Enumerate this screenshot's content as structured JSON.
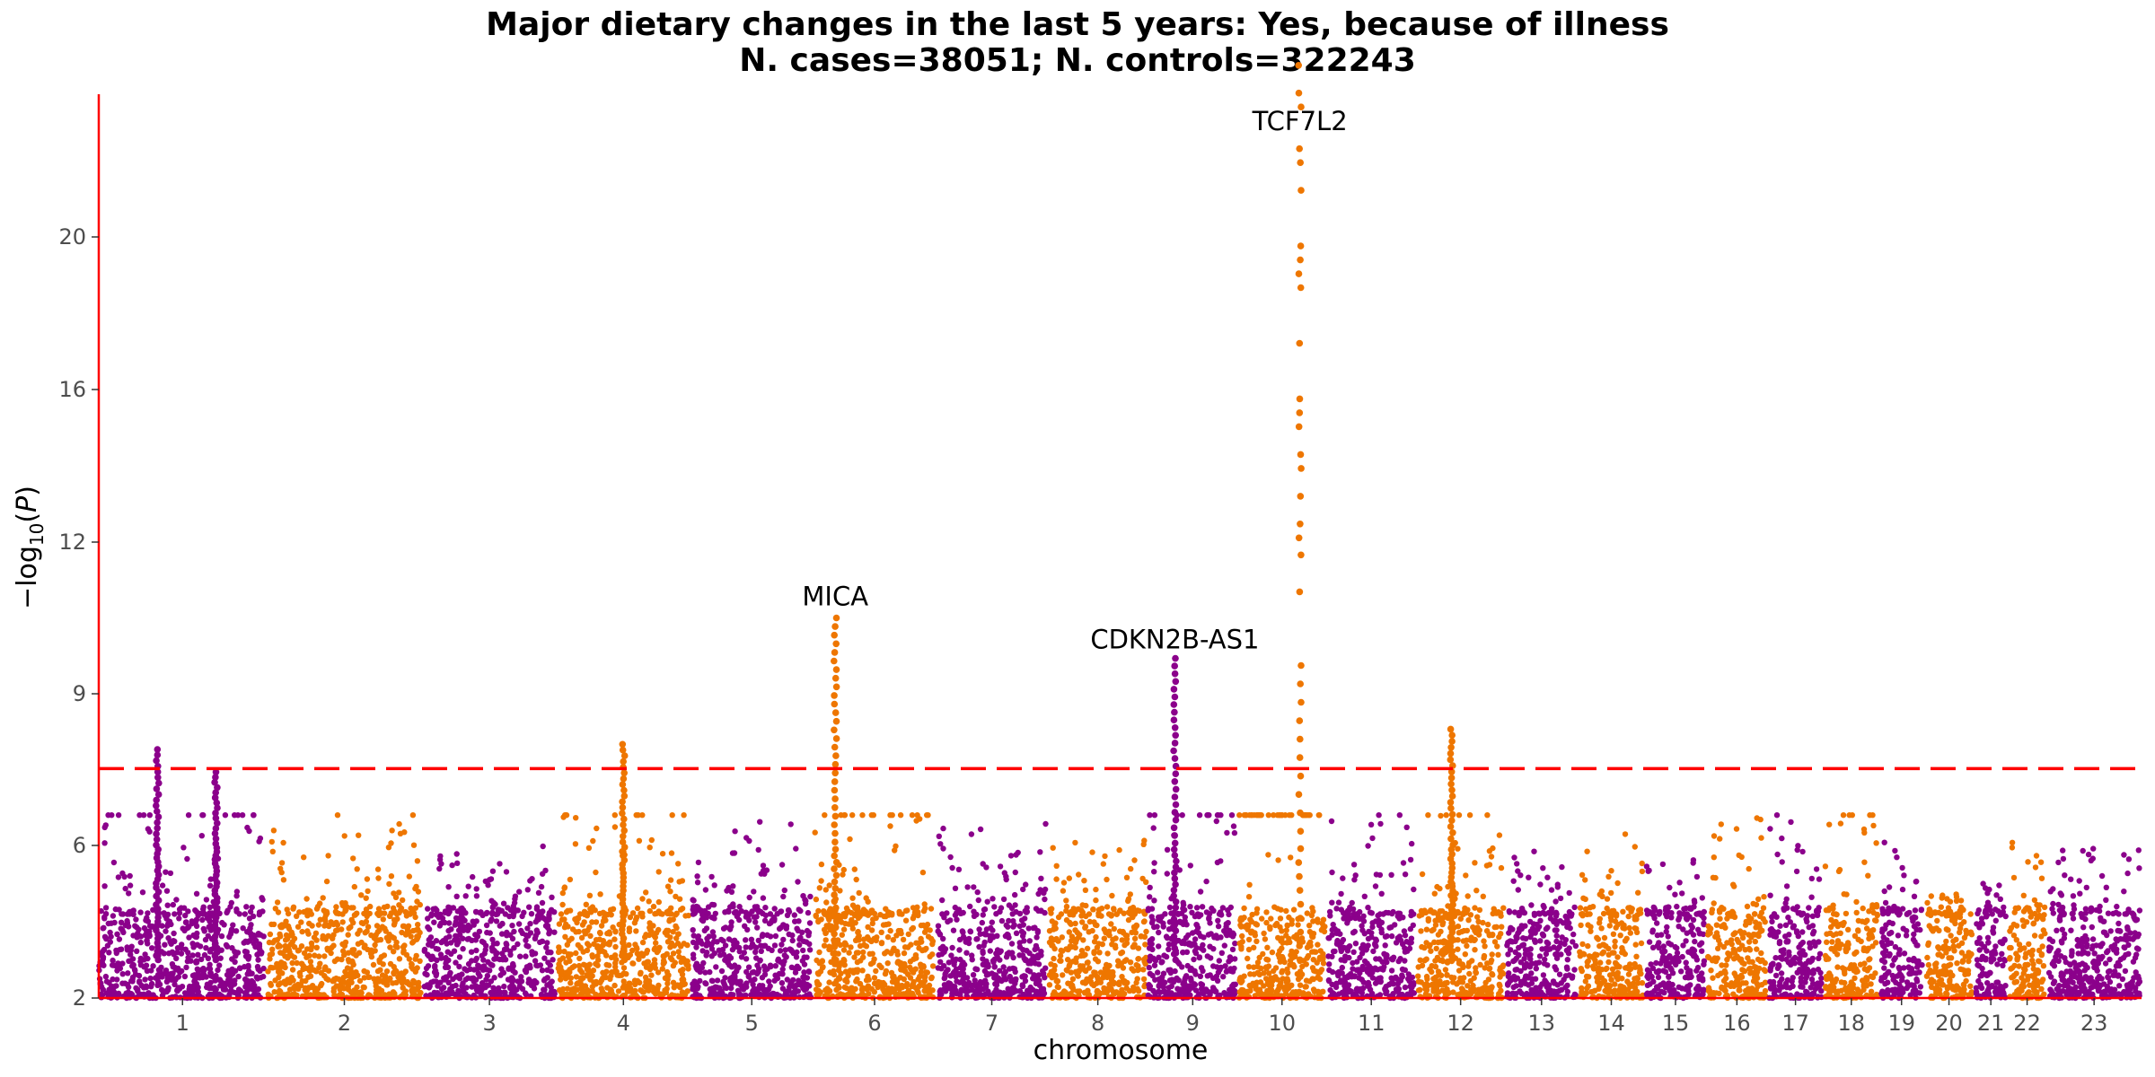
{
  "title_line1": "Major dietary changes in the last 5 years: Yes, because of illness",
  "title_line2": "N. cases=38051; N. controls=322243",
  "chart_data": {
    "type": "scatter",
    "subtype": "manhattan",
    "title": "Major dietary changes in the last 5 years: Yes, because of illness",
    "subtitle": "N. cases=38051; N. controls=322243",
    "xlabel": "chromosome",
    "ylabel": "−log10(P)",
    "y_ticks": [
      "2",
      "6",
      "9",
      "12",
      "16",
      "20"
    ],
    "y_tick_values": [
      2,
      6,
      9,
      12,
      16,
      20
    ],
    "y_scale_note": "compressed above 9",
    "y_range": [
      2,
      25
    ],
    "significance_threshold": 7.52,
    "colors": {
      "odd": "#8B008B",
      "even": "#EE7600",
      "axis": "#FF0000",
      "threshold": "#FF0000"
    },
    "chromosomes": [
      {
        "label": "1",
        "start": 0.0,
        "end": 1.5,
        "gap": true,
        "peak": 7.9
      },
      {
        "label": "2",
        "start": 1.5,
        "end": 2.9,
        "peak": 6.8
      },
      {
        "label": "3",
        "start": 2.9,
        "end": 4.1,
        "peak": 6.0
      },
      {
        "label": "4",
        "start": 4.1,
        "end": 5.3,
        "peak": 8.0
      },
      {
        "label": "5",
        "start": 5.3,
        "end": 6.4,
        "peak": 6.5
      },
      {
        "label": "6",
        "start": 6.4,
        "end": 7.5,
        "peak": 10.5
      },
      {
        "label": "7",
        "start": 7.5,
        "end": 8.5,
        "peak": 6.5
      },
      {
        "label": "8",
        "start": 8.5,
        "end": 9.4,
        "peak": 6.1
      },
      {
        "label": "9",
        "start": 9.4,
        "end": 10.2,
        "gap": true,
        "peak": 9.7
      },
      {
        "label": "10",
        "start": 10.2,
        "end": 11.0,
        "peak": 24.5
      },
      {
        "label": "11",
        "start": 11.0,
        "end": 11.8,
        "peak": 6.7
      },
      {
        "label": "12",
        "start": 11.8,
        "end": 12.6,
        "peak": 8.3
      },
      {
        "label": "13",
        "start": 12.6,
        "end": 13.25,
        "peak": 6.1
      },
      {
        "label": "14",
        "start": 13.25,
        "end": 13.85,
        "peak": 6.3
      },
      {
        "label": "15",
        "start": 13.85,
        "end": 14.4,
        "peak": 5.8
      },
      {
        "label": "16",
        "start": 14.4,
        "end": 14.95,
        "peak": 6.6
      },
      {
        "label": "17",
        "start": 14.95,
        "end": 15.45,
        "peak": 6.7
      },
      {
        "label": "18",
        "start": 15.45,
        "end": 15.95,
        "peak": 7.1
      },
      {
        "label": "19",
        "start": 15.95,
        "end": 16.35,
        "peak": 6.2
      },
      {
        "label": "20",
        "start": 16.35,
        "end": 16.8,
        "peak": 5.5
      },
      {
        "label": "21",
        "start": 16.8,
        "end": 17.1,
        "peak": 5.0
      },
      {
        "label": "22",
        "start": 17.1,
        "end": 17.45,
        "peak": 6.4
      },
      {
        "label": "23",
        "start": 17.45,
        "end": 18.3,
        "peak": 6.0
      }
    ],
    "peaks": [
      {
        "chrom": "1",
        "pos": 0.35,
        "y": 7.9
      },
      {
        "chrom": "1",
        "pos": 0.7,
        "y": 7.45
      },
      {
        "chrom": "4",
        "pos": 0.5,
        "y": 8.0
      },
      {
        "chrom": "6",
        "pos": 0.18,
        "y": 10.5
      },
      {
        "chrom": "9",
        "pos": 0.3,
        "y": 9.7
      },
      {
        "chrom": "10",
        "pos": 0.7,
        "y": 24.5
      },
      {
        "chrom": "12",
        "pos": 0.4,
        "y": 8.3
      }
    ],
    "annotations": [
      {
        "label": "MICA",
        "chrom": "6",
        "pos": 0.18,
        "y": 10.75
      },
      {
        "label": "CDKN2B-AS1",
        "chrom": "9",
        "pos": 0.3,
        "y": 9.9
      },
      {
        "label": "TCF7L2",
        "chrom": "10",
        "pos": 0.7,
        "y": 22.8
      }
    ],
    "grid": false,
    "legend": "none"
  }
}
